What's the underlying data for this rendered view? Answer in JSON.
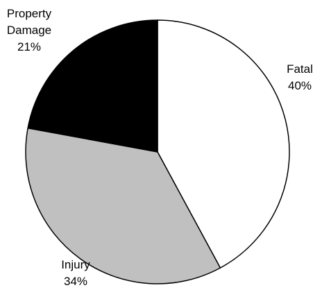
{
  "chart_data": {
    "type": "pie",
    "categories": [
      "Fatal",
      "Injury",
      "Property Damage"
    ],
    "values": [
      40,
      34,
      21
    ],
    "value_labels": [
      "40%",
      "34%",
      "21%"
    ],
    "colors": [
      "#ffffff",
      "#c0c0c0",
      "#000000"
    ]
  }
}
